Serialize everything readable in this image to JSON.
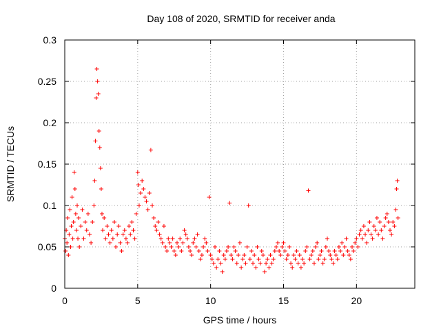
{
  "chart_data": {
    "type": "scatter",
    "title": "Day 108 of 2020, SRMTID for receiver anda",
    "xlabel": "GPS time / hours",
    "ylabel": "SRMTID / TECUs",
    "xlim": [
      0,
      24
    ],
    "ylim": [
      0,
      0.3
    ],
    "xticks": [
      0,
      5,
      10,
      15,
      20
    ],
    "xtick_labels": [
      "0",
      "5",
      "10",
      "15",
      "20"
    ],
    "yticks": [
      0,
      0.05,
      0.1,
      0.15,
      0.2,
      0.25,
      0.3
    ],
    "ytick_labels": [
      "0",
      "0.05",
      "0.1",
      "0.15",
      "0.2",
      "0.25",
      "0.3"
    ],
    "grid": true,
    "marker": "+",
    "marker_color": "#ff0000",
    "series": [
      {
        "name": "SRMTID",
        "x": [
          0.0,
          0.05,
          0.1,
          0.15,
          0.2,
          0.25,
          0.3,
          0.35,
          0.4,
          0.45,
          0.5,
          0.55,
          0.6,
          0.65,
          0.7,
          0.75,
          0.8,
          0.85,
          0.9,
          0.95,
          1.0,
          1.1,
          1.2,
          1.3,
          1.4,
          1.5,
          1.6,
          1.7,
          1.8,
          1.9,
          2.0,
          2.05,
          2.1,
          2.15,
          2.2,
          2.25,
          2.3,
          2.35,
          2.4,
          2.45,
          2.5,
          2.55,
          2.6,
          2.7,
          2.8,
          2.9,
          3.0,
          3.1,
          3.2,
          3.3,
          3.4,
          3.5,
          3.6,
          3.7,
          3.8,
          3.9,
          4.0,
          4.1,
          4.2,
          4.3,
          4.4,
          4.5,
          4.6,
          4.7,
          4.8,
          4.9,
          5.0,
          5.05,
          5.1,
          5.2,
          5.3,
          5.4,
          5.5,
          5.6,
          5.7,
          5.8,
          5.9,
          6.0,
          6.1,
          6.2,
          6.3,
          6.4,
          6.5,
          6.6,
          6.7,
          6.8,
          6.9,
          7.0,
          7.1,
          7.2,
          7.3,
          7.4,
          7.5,
          7.6,
          7.7,
          7.8,
          7.9,
          8.0,
          8.1,
          8.2,
          8.3,
          8.4,
          8.5,
          8.6,
          8.7,
          8.8,
          8.9,
          9.0,
          9.1,
          9.2,
          9.3,
          9.4,
          9.5,
          9.6,
          9.7,
          9.8,
          9.9,
          10.0,
          10.1,
          10.2,
          10.3,
          10.4,
          10.5,
          10.6,
          10.7,
          10.8,
          10.9,
          11.0,
          11.1,
          11.2,
          11.3,
          11.4,
          11.5,
          11.6,
          11.7,
          11.8,
          11.9,
          12.0,
          12.1,
          12.2,
          12.3,
          12.4,
          12.5,
          12.6,
          12.7,
          12.8,
          12.9,
          13.0,
          13.1,
          13.2,
          13.3,
          13.4,
          13.5,
          13.6,
          13.7,
          13.8,
          13.9,
          14.0,
          14.1,
          14.2,
          14.3,
          14.4,
          14.5,
          14.6,
          14.7,
          14.8,
          14.9,
          15.0,
          15.1,
          15.2,
          15.3,
          15.4,
          15.5,
          15.6,
          15.7,
          15.8,
          15.9,
          16.0,
          16.1,
          16.2,
          16.3,
          16.4,
          16.5,
          16.6,
          16.7,
          16.8,
          16.9,
          17.0,
          17.1,
          17.2,
          17.3,
          17.4,
          17.5,
          17.6,
          17.7,
          17.8,
          17.9,
          18.0,
          18.1,
          18.2,
          18.3,
          18.4,
          18.5,
          18.6,
          18.7,
          18.8,
          18.9,
          19.0,
          19.1,
          19.2,
          19.3,
          19.4,
          19.5,
          19.6,
          19.7,
          19.8,
          19.9,
          20.0,
          20.1,
          20.2,
          20.3,
          20.4,
          20.5,
          20.6,
          20.7,
          20.8,
          20.9,
          21.0,
          21.1,
          21.2,
          21.3,
          21.4,
          21.5,
          21.6,
          21.7,
          21.8,
          21.9,
          22.0,
          22.1,
          22.2,
          22.3,
          22.4,
          22.5,
          22.6,
          22.7,
          22.75,
          22.8,
          22.85
        ],
        "y": [
          0.06,
          0.045,
          0.07,
          0.055,
          0.085,
          0.04,
          0.065,
          0.095,
          0.05,
          0.075,
          0.11,
          0.06,
          0.08,
          0.14,
          0.12,
          0.09,
          0.07,
          0.1,
          0.06,
          0.085,
          0.05,
          0.075,
          0.095,
          0.06,
          0.08,
          0.07,
          0.09,
          0.065,
          0.055,
          0.08,
          0.1,
          0.13,
          0.178,
          0.23,
          0.265,
          0.25,
          0.235,
          0.19,
          0.17,
          0.145,
          0.12,
          0.09,
          0.07,
          0.085,
          0.06,
          0.075,
          0.065,
          0.055,
          0.07,
          0.06,
          0.08,
          0.05,
          0.065,
          0.075,
          0.055,
          0.045,
          0.065,
          0.07,
          0.06,
          0.055,
          0.075,
          0.065,
          0.08,
          0.07,
          0.06,
          0.09,
          0.14,
          0.125,
          0.1,
          0.115,
          0.13,
          0.12,
          0.11,
          0.105,
          0.095,
          0.115,
          0.167,
          0.1,
          0.085,
          0.075,
          0.07,
          0.08,
          0.065,
          0.06,
          0.055,
          0.075,
          0.05,
          0.045,
          0.06,
          0.055,
          0.05,
          0.06,
          0.045,
          0.04,
          0.055,
          0.05,
          0.06,
          0.045,
          0.055,
          0.07,
          0.065,
          0.06,
          0.05,
          0.045,
          0.04,
          0.055,
          0.06,
          0.05,
          0.065,
          0.045,
          0.035,
          0.04,
          0.05,
          0.06,
          0.055,
          0.045,
          0.11,
          0.04,
          0.035,
          0.03,
          0.05,
          0.025,
          0.035,
          0.045,
          0.03,
          0.02,
          0.04,
          0.035,
          0.045,
          0.05,
          0.103,
          0.04,
          0.035,
          0.05,
          0.045,
          0.03,
          0.04,
          0.055,
          0.025,
          0.035,
          0.04,
          0.03,
          0.05,
          0.1,
          0.035,
          0.045,
          0.03,
          0.04,
          0.025,
          0.05,
          0.035,
          0.03,
          0.045,
          0.04,
          0.02,
          0.03,
          0.035,
          0.025,
          0.04,
          0.03,
          0.035,
          0.045,
          0.05,
          0.055,
          0.045,
          0.04,
          0.05,
          0.055,
          0.045,
          0.035,
          0.04,
          0.05,
          0.03,
          0.025,
          0.04,
          0.035,
          0.045,
          0.03,
          0.04,
          0.025,
          0.035,
          0.03,
          0.045,
          0.05,
          0.118,
          0.035,
          0.04,
          0.045,
          0.03,
          0.05,
          0.055,
          0.035,
          0.04,
          0.045,
          0.03,
          0.035,
          0.05,
          0.06,
          0.045,
          0.04,
          0.035,
          0.03,
          0.045,
          0.04,
          0.035,
          0.05,
          0.045,
          0.055,
          0.04,
          0.05,
          0.06,
          0.045,
          0.04,
          0.035,
          0.05,
          0.045,
          0.055,
          0.06,
          0.05,
          0.065,
          0.07,
          0.06,
          0.075,
          0.065,
          0.055,
          0.07,
          0.08,
          0.065,
          0.06,
          0.075,
          0.07,
          0.085,
          0.065,
          0.08,
          0.07,
          0.06,
          0.075,
          0.085,
          0.09,
          0.08,
          0.07,
          0.065,
          0.08,
          0.075,
          0.095,
          0.12,
          0.13,
          0.085
        ]
      }
    ]
  }
}
